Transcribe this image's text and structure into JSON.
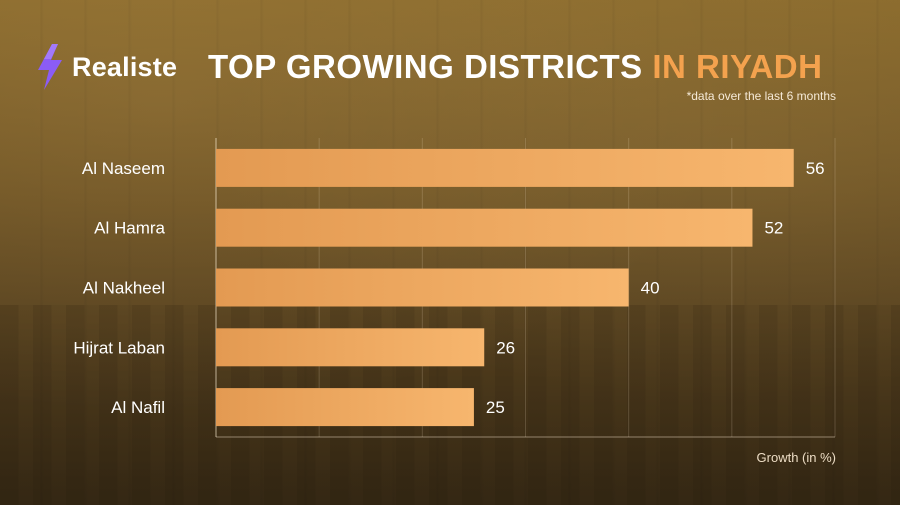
{
  "brand": {
    "name": "Realiste",
    "icon": "lightning-bolt-icon",
    "icon_color": "#8b5cf6"
  },
  "title": {
    "main": "TOP GROWING DISTRICTS",
    "highlight": "IN RIYADH",
    "highlight_color": "#f4a24e"
  },
  "subtitle": "*data over the last 6 months",
  "chart_data": {
    "type": "bar",
    "orientation": "horizontal",
    "categories": [
      "Al Naseem",
      "Al Hamra",
      "Al Nakheel",
      "Hijrat Laban",
      "Al Nafil"
    ],
    "values": [
      56,
      52,
      40,
      26,
      25
    ],
    "xlabel": "Growth (in %)",
    "ylabel": "",
    "xlim": [
      0,
      60
    ],
    "grid": true,
    "bar_color_start": "#e6a05a",
    "bar_color_end": "#f6b46e"
  }
}
